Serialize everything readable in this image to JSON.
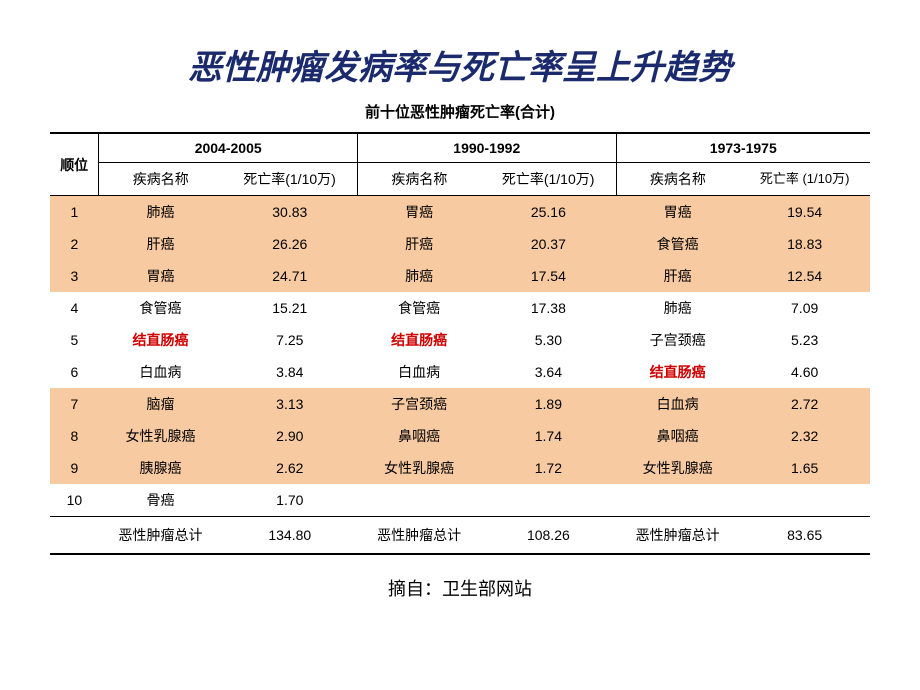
{
  "title": "恶性肿瘤发病率与死亡率呈上升趋势",
  "subtitle": "前十位恶性肿瘤死亡率(合计)",
  "headers": {
    "rank": "顺位",
    "name": "疾病名称",
    "rate": "死亡率(1/10万)",
    "rate_wrap": "死亡率\n(1/10万)"
  },
  "periods": [
    "2004-2005",
    "1990-1992",
    "1973-1975"
  ],
  "band_fill_rows": [
    1,
    2,
    3,
    7,
    8,
    9
  ],
  "highlight_name": "结直肠癌",
  "rows": [
    {
      "rank": "1",
      "p0n": "肺癌",
      "p0r": "30.83",
      "p1n": "胃癌",
      "p1r": "25.16",
      "p2n": "胃癌",
      "p2r": "19.54"
    },
    {
      "rank": "2",
      "p0n": "肝癌",
      "p0r": "26.26",
      "p1n": "肝癌",
      "p1r": "20.37",
      "p2n": "食管癌",
      "p2r": "18.83"
    },
    {
      "rank": "3",
      "p0n": "胃癌",
      "p0r": "24.71",
      "p1n": "肺癌",
      "p1r": "17.54",
      "p2n": "肝癌",
      "p2r": "12.54"
    },
    {
      "rank": "4",
      "p0n": "食管癌",
      "p0r": "15.21",
      "p1n": "食管癌",
      "p1r": "17.38",
      "p2n": "肺癌",
      "p2r": "7.09"
    },
    {
      "rank": "5",
      "p0n": "结直肠癌",
      "p0r": "7.25",
      "p1n": "结直肠癌",
      "p1r": "5.30",
      "p2n": "子宫颈癌",
      "p2r": "5.23"
    },
    {
      "rank": "6",
      "p0n": "白血病",
      "p0r": "3.84",
      "p1n": "白血病",
      "p1r": "3.64",
      "p2n": "结直肠癌",
      "p2r": "4.60"
    },
    {
      "rank": "7",
      "p0n": "脑瘤",
      "p0r": "3.13",
      "p1n": "子宫颈癌",
      "p1r": "1.89",
      "p2n": "白血病",
      "p2r": "2.72"
    },
    {
      "rank": "8",
      "p0n": "女性乳腺癌",
      "p0r": "2.90",
      "p1n": "鼻咽癌",
      "p1r": "1.74",
      "p2n": "鼻咽癌",
      "p2r": "2.32"
    },
    {
      "rank": "9",
      "p0n": "胰腺癌",
      "p0r": "2.62",
      "p1n": "女性乳腺癌",
      "p1r": "1.72",
      "p2n": "女性乳腺癌",
      "p2r": "1.65"
    },
    {
      "rank": "10",
      "p0n": "骨癌",
      "p0r": "1.70",
      "p1n": "",
      "p1r": "",
      "p2n": "",
      "p2r": ""
    }
  ],
  "total": {
    "label": "恶性肿瘤总计",
    "p0": "134.80",
    "p1": "108.26",
    "p2": "83.65"
  },
  "source": "摘自：卫生部网站",
  "colors": {
    "title": "#1a2a6c",
    "band_fill": "#f7caa1",
    "highlight": "#d00000",
    "background": "#ffffff"
  },
  "font_sizes": {
    "title": 34,
    "subtitle": 15,
    "body": 14,
    "source": 18
  }
}
